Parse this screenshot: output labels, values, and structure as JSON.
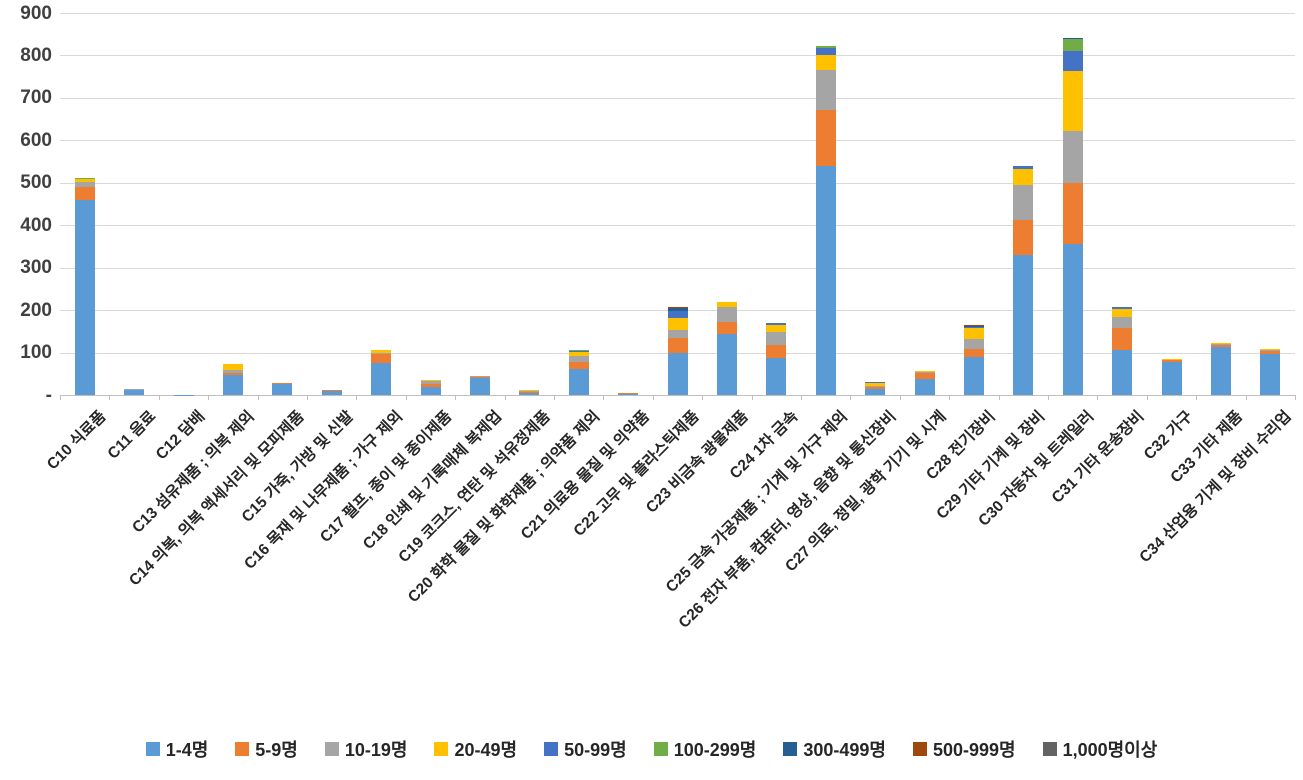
{
  "chart_data": {
    "type": "bar",
    "stacked": true,
    "title": "",
    "xlabel": "",
    "ylabel": "",
    "ylim": [
      0,
      900
    ],
    "ytick_interval": 100,
    "ytick_labels": [
      "-",
      "100",
      "200",
      "300",
      "400",
      "500",
      "600",
      "700",
      "800",
      "900"
    ],
    "grid": true,
    "legend_position": "bottom",
    "categories": [
      "C10 식료품",
      "C11 음료",
      "C12 담배",
      "C13 섬유제품 ; 의복 제외",
      "C14 의복, 의복 액세서리 및 모피제품",
      "C15 가죽, 가방 및 신발",
      "C16 목재 및 나무제품 ; 가구 제외",
      "C17 펄프, 종이 및 종이제품",
      "C18 인쇄 및 기록매체 복제업",
      "C19 코크스, 연탄 및 석유정제품",
      "C20 화학 물질 및 화학제품 ; 의약품 제외",
      "C21 의료용 물질 및 의약품",
      "C22 고무 및 플라스틱제품",
      "C23 비금속 광물제품",
      "C24 1차 금속",
      "C25 금속 가공제품 ; 기계 및 가구 제외",
      "C26 전자 부품, 컴퓨터, 영상, 음향 및 통신장비",
      "C27 의료, 정밀, 광학 기기 및 시계",
      "C28 전기장비",
      "C29 기타 기계 및 장비",
      "C30 자동차 및 트레일러",
      "C31 기타 운송장비",
      "C32 가구",
      "C33 기타 제품",
      "C34 산업용 기계 및 장비 수리업"
    ],
    "series": [
      {
        "name": "1-4명",
        "color": "#5B9BD5",
        "values": [
          460,
          12,
          1,
          47,
          26,
          11,
          75,
          18,
          40,
          4,
          61,
          3,
          100,
          144,
          88,
          540,
          13,
          37,
          90,
          330,
          356,
          107,
          78,
          112,
          96
        ]
      },
      {
        "name": "5-9명",
        "color": "#ED7D31",
        "values": [
          30,
          2,
          0,
          6,
          2,
          2,
          22,
          9,
          2,
          4,
          17,
          1,
          34,
          29,
          30,
          132,
          5,
          16,
          18,
          82,
          143,
          50,
          4,
          5,
          9
        ]
      },
      {
        "name": "10-19명",
        "color": "#A5A5A5",
        "values": [
          13,
          1,
          0,
          6,
          0,
          0,
          3,
          5,
          2,
          3,
          14,
          0,
          20,
          35,
          30,
          94,
          4,
          1,
          24,
          83,
          122,
          26,
          2,
          3,
          2
        ]
      },
      {
        "name": "20-49명",
        "color": "#FFC000",
        "values": [
          6,
          0,
          0,
          13,
          0,
          0,
          5,
          4,
          0,
          2,
          9,
          0,
          28,
          10,
          17,
          34,
          6,
          3,
          25,
          37,
          142,
          20,
          2,
          2,
          2
        ]
      },
      {
        "name": "50-99명",
        "color": "#4472C4",
        "values": [
          0,
          0,
          0,
          0,
          0,
          0,
          0,
          0,
          0,
          0,
          2,
          0,
          17,
          0,
          5,
          18,
          2,
          0,
          3,
          8,
          47,
          5,
          0,
          0,
          0
        ]
      },
      {
        "name": "100-299명",
        "color": "#70AD47",
        "values": [
          3,
          0,
          0,
          0,
          0,
          0,
          0,
          0,
          0,
          0,
          2,
          0,
          0,
          0,
          0,
          4,
          0,
          0,
          0,
          0,
          28,
          0,
          0,
          0,
          0
        ]
      },
      {
        "name": "300-499명",
        "color": "#255E91",
        "values": [
          0,
          0,
          0,
          0,
          0,
          0,
          0,
          0,
          0,
          0,
          0,
          0,
          6,
          0,
          0,
          0,
          0,
          0,
          3,
          0,
          4,
          0,
          0,
          0,
          0
        ]
      },
      {
        "name": "500-999명",
        "color": "#9E480E",
        "values": [
          0,
          0,
          0,
          0,
          0,
          0,
          0,
          0,
          0,
          0,
          0,
          0,
          2,
          0,
          0,
          0,
          0,
          0,
          2,
          0,
          0,
          0,
          0,
          0,
          0
        ]
      },
      {
        "name": "1,000명이상",
        "color": "#636363",
        "values": [
          0,
          0,
          0,
          0,
          0,
          0,
          0,
          0,
          0,
          0,
          0,
          0,
          0,
          0,
          0,
          0,
          0,
          0,
          0,
          0,
          0,
          0,
          0,
          0,
          0
        ]
      }
    ]
  }
}
